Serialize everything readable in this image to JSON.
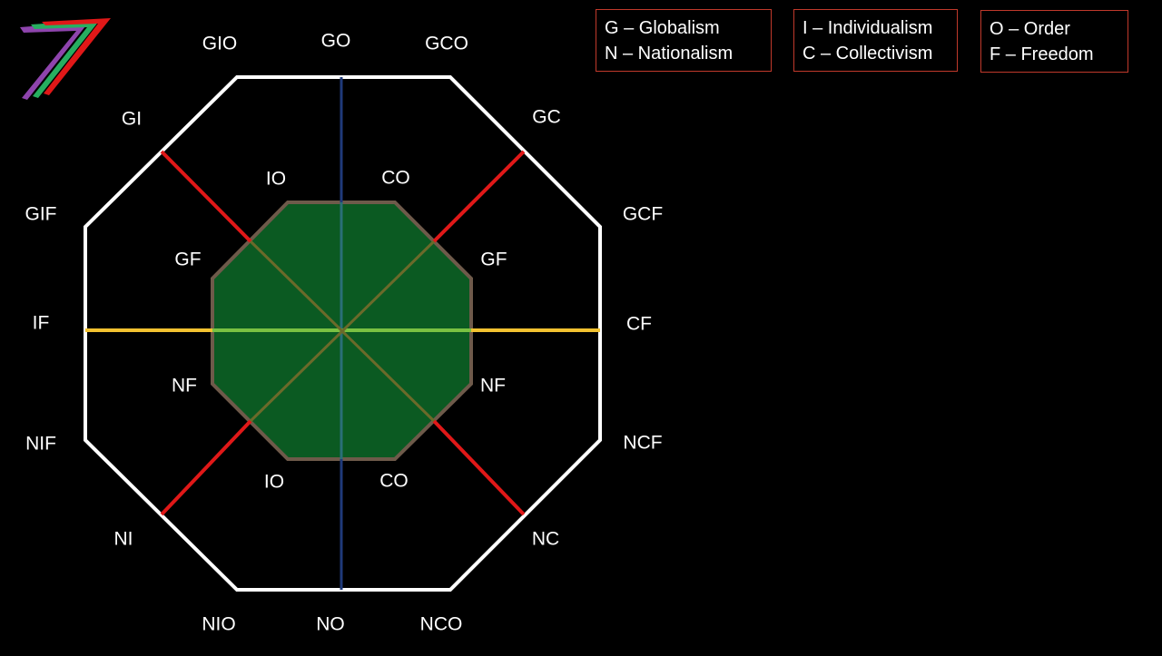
{
  "legends": [
    {
      "lines": [
        "G – Globalism",
        "N – Nationalism"
      ]
    },
    {
      "lines": [
        "I – Individualism",
        "C – Collectivism"
      ]
    },
    {
      "lines": [
        "O – Order",
        "F – Freedom"
      ]
    }
  ],
  "outer_labels": {
    "gio": "GIO",
    "go": "GO",
    "gco": "GCO",
    "gi": "GI",
    "gc": "GC",
    "gif": "GIF",
    "gcf": "GCF",
    "if": "IF",
    "cf": "CF",
    "nif": "NIF",
    "ncf": "NCF",
    "ni": "NI",
    "nc": "NC",
    "nio": "NIO",
    "no": "NO",
    "nco": "NCO"
  },
  "inner_labels": {
    "io_top": "IO",
    "co_top": "CO",
    "gf_left": "GF",
    "gf_right": "GF",
    "nf_left": "NF",
    "nf_right": "NF",
    "io_bottom": "IO",
    "co_bottom": "CO"
  },
  "colors": {
    "outer_octagon": "#ffffff",
    "inner_fill": "#0b5a22",
    "inner_stroke": "#6e5a4a",
    "vertical_axis": "#1f3a7a",
    "horizontal_axis": "#f2c230",
    "diagonal_axes": "#e01818",
    "legend_border": "#c0392b",
    "logo_purple": "#8e44ad",
    "logo_green": "#27ae60",
    "logo_red": "#e01818"
  },
  "icons": {
    "logo": "seven-logo-icon"
  }
}
